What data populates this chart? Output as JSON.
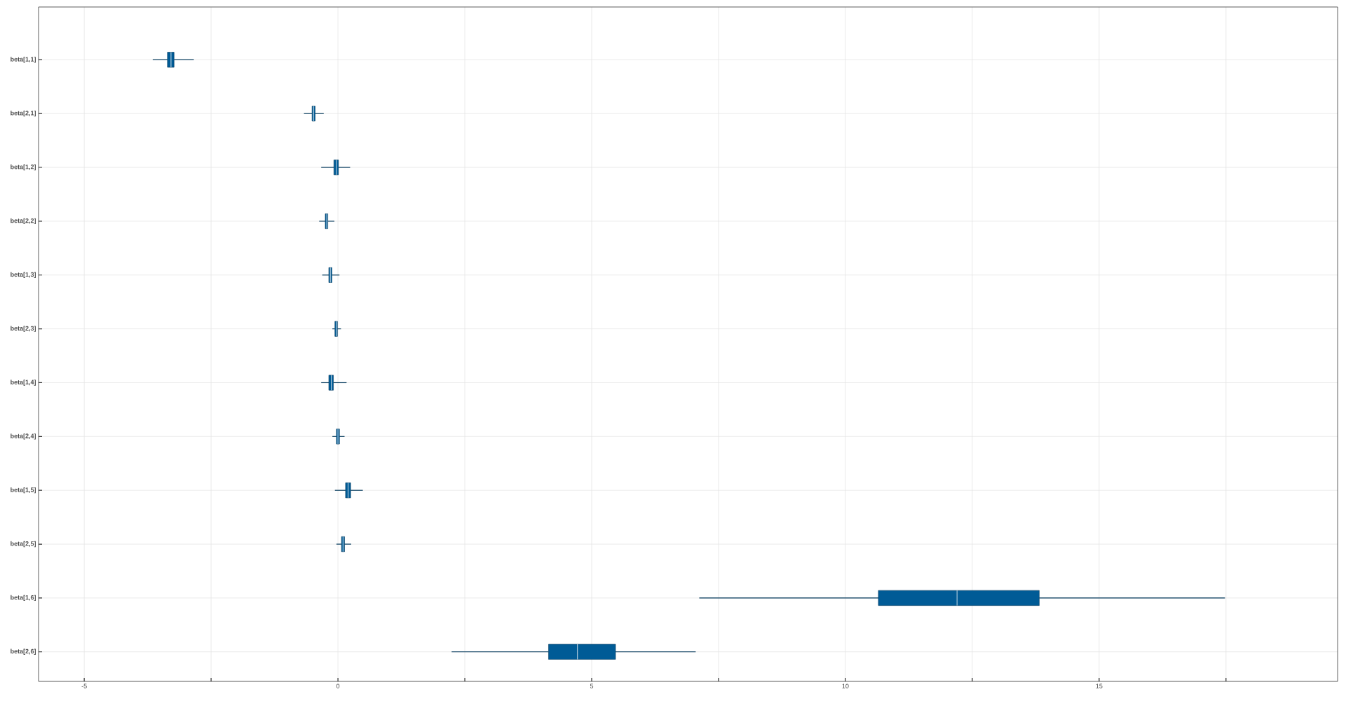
{
  "chart_data": {
    "type": "box",
    "orientation": "horizontal",
    "categories": [
      "beta[1,1]",
      "beta[2,1]",
      "beta[1,2]",
      "beta[2,2]",
      "beta[1,3]",
      "beta[2,3]",
      "beta[1,4]",
      "beta[2,4]",
      "beta[1,5]",
      "beta[2,5]",
      "beta[1,6]",
      "beta[2,6]"
    ],
    "series": [
      {
        "color": "#005b96",
        "boxes": [
          {
            "low": -3.65,
            "q1": -3.36,
            "median": -3.29,
            "q3": -3.23,
            "high": -2.84
          },
          {
            "low": -0.67,
            "q1": -0.51,
            "median": -0.48,
            "q3": -0.45,
            "high": -0.28
          },
          {
            "low": -0.33,
            "q1": -0.08,
            "median": -0.03,
            "q3": 0.01,
            "high": 0.24
          },
          {
            "low": -0.37,
            "q1": -0.25,
            "median": -0.22,
            "q3": -0.2,
            "high": -0.07
          },
          {
            "low": -0.31,
            "q1": -0.18,
            "median": -0.15,
            "q3": -0.12,
            "high": 0.03
          },
          {
            "low": -0.11,
            "q1": -0.06,
            "median": -0.03,
            "q3": -0.01,
            "high": 0.06
          },
          {
            "low": -0.33,
            "q1": -0.18,
            "median": -0.13,
            "q3": -0.09,
            "high": 0.17
          },
          {
            "low": -0.11,
            "q1": -0.03,
            "median": 0.0,
            "q3": 0.03,
            "high": 0.13
          },
          {
            "low": -0.06,
            "q1": 0.15,
            "median": 0.2,
            "q3": 0.25,
            "high": 0.49
          },
          {
            "low": -0.03,
            "q1": 0.07,
            "median": 0.1,
            "q3": 0.13,
            "high": 0.26
          },
          {
            "low": 7.12,
            "q1": 10.65,
            "median": 12.2,
            "q3": 13.82,
            "high": 17.48
          },
          {
            "low": 2.24,
            "q1": 4.15,
            "median": 4.72,
            "q3": 5.47,
            "high": 7.05
          }
        ]
      }
    ],
    "xlim": [
      -5.9,
      19.7
    ],
    "xticks": [
      -5,
      {
        "value": -2.5,
        "label": null
      },
      0,
      {
        "value": 2.5,
        "label": null
      },
      5,
      {
        "value": 7.5,
        "label": null
      },
      10,
      {
        "value": 12.5,
        "label": null
      },
      15,
      {
        "value": 17.5,
        "label": null
      }
    ],
    "grid": true
  }
}
